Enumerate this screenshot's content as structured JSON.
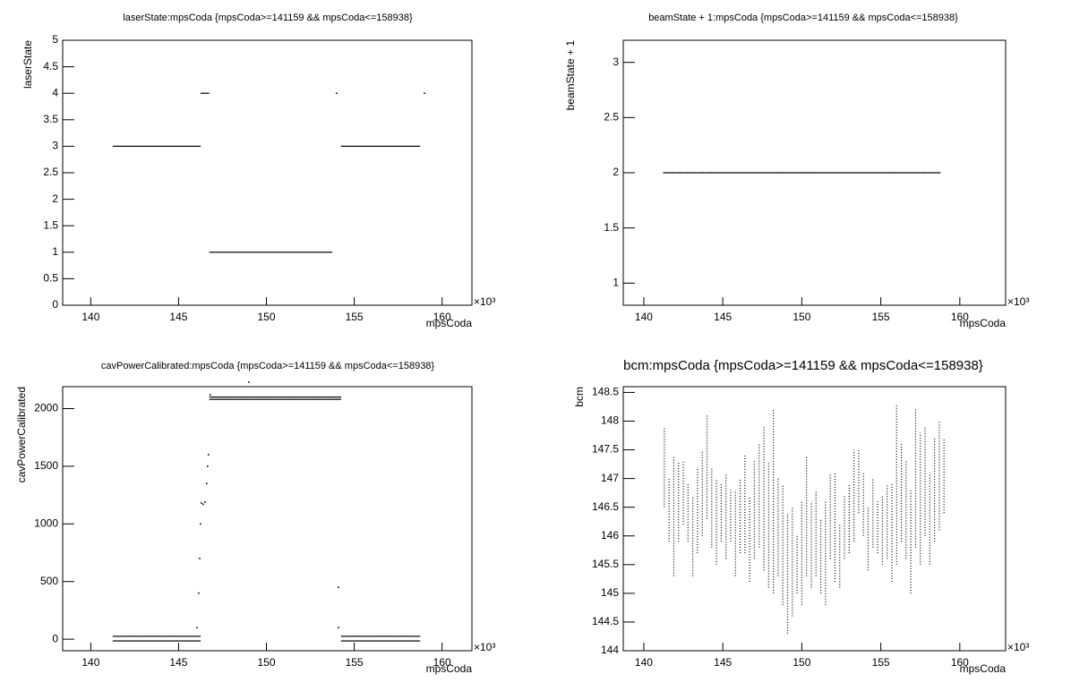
{
  "chart_data": [
    {
      "type": "scatter",
      "title": "laserState:mpsCoda {mpsCoda>=141159 && mpsCoda<=158938}",
      "x_label": "mpsCoda",
      "y_label": "laserState",
      "x_multiplier": "×10³",
      "xlim": [
        138.4,
        161.7
      ],
      "xticks": [
        140,
        145,
        150,
        155,
        160
      ],
      "ylim": [
        0,
        5
      ],
      "yticks": [
        0,
        0.5,
        1,
        1.5,
        2,
        2.5,
        3,
        3.5,
        4,
        4.5,
        5
      ],
      "color": "#000000",
      "series": [
        {
          "marker": "dash",
          "x": [
            141.5,
            142,
            142.5,
            143,
            143.5,
            144,
            144.5,
            145,
            145.5,
            146,
            146.5,
            147,
            147.5,
            148,
            148.5,
            149,
            149.5,
            150,
            150.5,
            151,
            151.5,
            152,
            152.5,
            153,
            153.5,
            154.5,
            155,
            155.5,
            156,
            156.5,
            157,
            157.5,
            158,
            158.5
          ],
          "y": [
            3,
            3,
            3,
            3,
            3,
            3,
            3,
            3,
            3,
            3,
            4,
            1,
            1,
            1,
            1,
            1,
            1,
            1,
            1,
            1,
            1,
            1,
            1,
            1,
            1,
            3,
            3,
            3,
            3,
            3,
            3,
            3,
            3,
            3
          ]
        },
        {
          "marker": "dot",
          "x": [
            154.0,
            159.0
          ],
          "y": [
            4,
            4
          ]
        }
      ]
    },
    {
      "type": "scatter",
      "title": "beamState + 1:mpsCoda {mpsCoda>=141159 && mpsCoda<=158938}",
      "x_label": "mpsCoda",
      "y_label": "beamState + 1",
      "x_multiplier": "×10³",
      "xlim": [
        138.7,
        162.9
      ],
      "xticks": [
        140,
        145,
        150,
        155,
        160
      ],
      "ylim": [
        0.8,
        3.2
      ],
      "yticks": [
        1,
        1.5,
        2,
        2.5,
        3
      ],
      "color": "#000000",
      "series": [
        {
          "marker": "dash",
          "x": [
            141.5,
            142,
            142.5,
            143,
            143.5,
            144,
            144.5,
            145,
            145.5,
            146,
            146.5,
            147,
            147.5,
            148,
            148.5,
            149,
            149.5,
            150,
            150.5,
            151,
            151.5,
            152,
            152.5,
            153,
            153.5,
            154,
            154.5,
            155,
            155.5,
            156,
            156.5,
            157,
            157.5,
            158,
            158.5
          ],
          "y": [
            2,
            2,
            2,
            2,
            2,
            2,
            2,
            2,
            2,
            2,
            2,
            2,
            2,
            2,
            2,
            2,
            2,
            2,
            2,
            2,
            2,
            2,
            2,
            2,
            2,
            2,
            2,
            2,
            2,
            2,
            2,
            2,
            2,
            2,
            2
          ]
        }
      ]
    },
    {
      "type": "scatter",
      "title": "cavPowerCalibrated:mpsCoda {mpsCoda>=141159 && mpsCoda<=158938}",
      "x_label": "mpsCoda",
      "y_label": "cavPowerCalibrated",
      "x_multiplier": "×10³",
      "xlim": [
        138.4,
        161.7
      ],
      "xticks": [
        140,
        145,
        150,
        155,
        160
      ],
      "ylim": [
        -100,
        2190
      ],
      "yticks": [
        0,
        500,
        1000,
        1500,
        2000
      ],
      "color": "#000000",
      "series": [
        {
          "marker": "dash",
          "x": [
            141.5,
            142,
            142.5,
            143,
            143.5,
            144,
            144.5,
            145,
            145.5,
            146,
            154.5,
            155,
            155.5,
            156,
            156.5,
            157,
            157.5,
            158,
            158.5
          ],
          "y": [
            25,
            25,
            25,
            25,
            25,
            25,
            25,
            25,
            25,
            25,
            25,
            25,
            25,
            25,
            25,
            25,
            25,
            25,
            25
          ]
        },
        {
          "marker": "dash",
          "x": [
            141.5,
            142,
            142.5,
            143,
            143.5,
            144,
            144.5,
            145,
            145.5,
            146,
            154.5,
            155,
            155.5,
            156,
            156.5,
            157,
            157.5,
            158,
            158.5
          ],
          "y": [
            -15,
            -15,
            -15,
            -15,
            -15,
            -15,
            -15,
            -15,
            -15,
            -15,
            -15,
            -15,
            -15,
            -15,
            -15,
            -15,
            -15,
            -15,
            -15
          ]
        },
        {
          "marker": "dash",
          "x": [
            147,
            147.5,
            148,
            148.5,
            149,
            149.5,
            150,
            150.5,
            151,
            151.5,
            152,
            152.5,
            153,
            153.5,
            154
          ],
          "y": [
            2100,
            2100,
            2100,
            2100,
            2100,
            2100,
            2100,
            2100,
            2100,
            2100,
            2100,
            2100,
            2100,
            2100,
            2100
          ]
        },
        {
          "marker": "dash",
          "x": [
            147,
            147.5,
            148,
            148.5,
            149,
            149.5,
            150,
            150.5,
            151,
            151.5,
            152,
            152.5,
            153,
            153.5,
            154
          ],
          "y": [
            2080,
            2080,
            2080,
            2080,
            2080,
            2080,
            2080,
            2080,
            2080,
            2080,
            2080,
            2080,
            2080,
            2080,
            2080
          ]
        },
        {
          "marker": "dot",
          "x": [
            146.05,
            146.15,
            146.2,
            146.25,
            146.3,
            146.4,
            146.5,
            146.6,
            146.65,
            146.7,
            146.8,
            149,
            154.1,
            154.1
          ],
          "y": [
            100,
            400,
            700,
            1000,
            1180,
            1170,
            1190,
            1350,
            1500,
            1600,
            2120,
            2230,
            450,
            100
          ]
        }
      ]
    },
    {
      "type": "range",
      "title": "bcm:mpsCoda {mpsCoda>=141159 && mpsCoda<=158938}",
      "x_label": "mpsCoda",
      "y_label": "bcm",
      "x_multiplier": "×10³",
      "xlim": [
        138.7,
        162.9
      ],
      "xticks": [
        140,
        145,
        150,
        155,
        160
      ],
      "ylim": [
        144,
        148.6
      ],
      "yticks": [
        144,
        144.5,
        145,
        145.5,
        146,
        146.5,
        147,
        147.5,
        148,
        148.5
      ],
      "color": "#000000",
      "x": [
        141.3,
        141.6,
        141.9,
        142.2,
        142.5,
        142.8,
        143.1,
        143.4,
        143.7,
        144.0,
        144.3,
        144.6,
        144.9,
        145.2,
        145.5,
        145.8,
        146.1,
        146.4,
        146.7,
        147.0,
        147.3,
        147.6,
        147.9,
        148.2,
        148.5,
        148.8,
        149.1,
        149.4,
        149.7,
        150.0,
        150.3,
        150.6,
        150.9,
        151.2,
        151.5,
        151.8,
        152.1,
        152.4,
        152.7,
        153.0,
        153.3,
        153.6,
        153.9,
        154.2,
        154.5,
        154.8,
        155.1,
        155.4,
        155.7,
        156.0,
        156.3,
        156.6,
        156.9,
        157.2,
        157.5,
        157.8,
        158.1,
        158.4,
        158.7,
        159.0
      ],
      "low": [
        146.5,
        145.9,
        145.3,
        145.9,
        146.2,
        145.9,
        145.3,
        145.7,
        146.0,
        146.3,
        145.8,
        145.5,
        145.9,
        145.6,
        145.9,
        145.3,
        145.7,
        145.7,
        145.2,
        145.6,
        145.8,
        145.4,
        145.1,
        145.0,
        145.3,
        144.8,
        144.3,
        144.6,
        145.0,
        144.8,
        145.3,
        145.1,
        145.3,
        145.0,
        144.8,
        145.6,
        145.2,
        145.1,
        145.6,
        145.7,
        145.9,
        146.4,
        146.0,
        145.4,
        145.8,
        145.7,
        145.5,
        145.6,
        145.2,
        145.5,
        145.9,
        145.6,
        145.0,
        145.8,
        145.5,
        146.0,
        145.5,
        145.9,
        146.1,
        146.4
      ],
      "high": [
        147.9,
        147.0,
        147.4,
        147.3,
        147.3,
        146.9,
        146.7,
        147.2,
        147.5,
        148.1,
        147.2,
        147.0,
        146.9,
        147.1,
        146.8,
        146.8,
        147.0,
        147.4,
        146.7,
        147.3,
        147.6,
        147.9,
        147.3,
        148.2,
        147.0,
        146.9,
        146.4,
        146.5,
        146.0,
        146.6,
        147.4,
        146.6,
        146.8,
        146.3,
        146.6,
        147.1,
        147.1,
        146.2,
        146.7,
        146.9,
        147.5,
        147.5,
        147.1,
        146.5,
        147.0,
        146.6,
        146.7,
        146.9,
        146.9,
        148.3,
        147.6,
        147.3,
        146.8,
        148.2,
        147.8,
        147.9,
        147.1,
        147.7,
        148.0,
        147.7
      ]
    }
  ]
}
